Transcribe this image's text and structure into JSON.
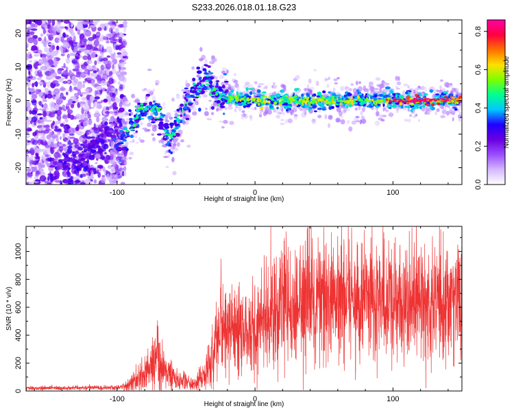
{
  "title": "S233.2026.018.01.18.G23",
  "chart_data": [
    {
      "type": "heatmap",
      "name": "spectrogram",
      "xlabel": "Height of straight line (km)",
      "ylabel": "Frequency (Hz)",
      "xlim": [
        -166,
        150
      ],
      "ylim": [
        -25,
        24
      ],
      "x_ticks": [
        -100,
        0,
        100
      ],
      "y_ticks": [
        -20,
        -10,
        0,
        10,
        20
      ],
      "x_tick_labels": [
        "-100",
        "0",
        "100"
      ],
      "y_tick_labels": [
        "-20",
        "-10",
        "0",
        "10",
        "20"
      ],
      "ridge": [
        {
          "x": -100,
          "y": -15
        },
        {
          "x": -90,
          "y": -8
        },
        {
          "x": -80,
          "y": -2
        },
        {
          "x": -70,
          "y": -3
        },
        {
          "x": -62,
          "y": -13
        },
        {
          "x": -55,
          "y": -5
        },
        {
          "x": -45,
          "y": 2
        },
        {
          "x": -35,
          "y": 6
        },
        {
          "x": -25,
          "y": 1
        },
        {
          "x": 0,
          "y": 0
        },
        {
          "x": 50,
          "y": 0
        },
        {
          "x": 100,
          "y": 0
        },
        {
          "x": 150,
          "y": 0
        }
      ],
      "peak_region": {
        "x_start": 95,
        "x_end": 150,
        "value": 0.85
      },
      "colorbar": {
        "label": "Normalized spectral amplitude",
        "range": [
          0.0,
          0.86
        ],
        "ticks": [
          0.0,
          0.2,
          0.4,
          0.6,
          0.8
        ],
        "tick_labels": [
          "0.0",
          "0.2",
          "0.4",
          "0.6",
          "0.8"
        ],
        "colors": [
          "#ffffff",
          "#d4b8ff",
          "#9a4dff",
          "#6a00e0",
          "#2000ff",
          "#00c8ff",
          "#00ff90",
          "#7cff00",
          "#ffe000",
          "#ff7000",
          "#ff0040",
          "#ff00aa"
        ]
      }
    },
    {
      "type": "line",
      "name": "snr",
      "xlabel": "Height of straight line (km)",
      "ylabel": "SNR (10 * v/v)",
      "xlim": [
        -166,
        150
      ],
      "ylim": [
        0,
        1180
      ],
      "x_ticks": [
        -100,
        0,
        100
      ],
      "y_ticks": [
        0,
        200,
        400,
        600,
        800,
        1000
      ],
      "x_tick_labels": [
        "-100",
        "0",
        "100"
      ],
      "y_tick_labels": [
        "0",
        "200",
        "400",
        "600",
        "800",
        "1000"
      ],
      "line_color": "#ee3333",
      "envelope": [
        {
          "x": -166,
          "y": 20
        },
        {
          "x": -100,
          "y": 25
        },
        {
          "x": -90,
          "y": 50
        },
        {
          "x": -80,
          "y": 120
        },
        {
          "x": -72,
          "y": 250
        },
        {
          "x": -65,
          "y": 150
        },
        {
          "x": -55,
          "y": 80
        },
        {
          "x": -45,
          "y": 50
        },
        {
          "x": -35,
          "y": 120
        },
        {
          "x": -25,
          "y": 450
        },
        {
          "x": -10,
          "y": 450
        },
        {
          "x": 0,
          "y": 470
        },
        {
          "x": 20,
          "y": 600
        },
        {
          "x": 50,
          "y": 700
        },
        {
          "x": 80,
          "y": 640
        },
        {
          "x": 100,
          "y": 640
        },
        {
          "x": 130,
          "y": 640
        },
        {
          "x": 150,
          "y": 660
        }
      ],
      "spikes": [
        {
          "x": -71,
          "y": 470
        },
        {
          "x": -28,
          "y": 640
        },
        {
          "x": 20,
          "y": 990
        },
        {
          "x": 60,
          "y": 1110
        },
        {
          "x": 70,
          "y": 1170
        },
        {
          "x": 84,
          "y": 1100
        },
        {
          "x": 147,
          "y": 1050
        }
      ]
    }
  ]
}
